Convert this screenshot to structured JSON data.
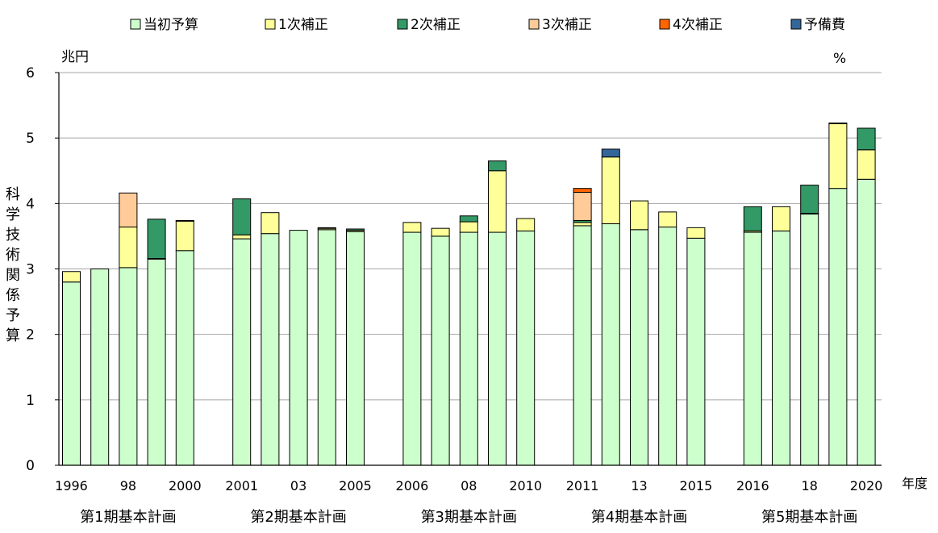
{
  "chart_data": {
    "type": "bar",
    "stacked": true,
    "title": "",
    "xlabel": "年度",
    "ylabel": "科学技術関係予算",
    "y_unit": "兆円",
    "right_unit": "%",
    "ylim": [
      0,
      6
    ],
    "yticks": [
      "0",
      "1",
      "2",
      "3",
      "4",
      "5",
      "6"
    ],
    "grid": true,
    "legend_position": "top",
    "series": [
      {
        "name": "当初予算",
        "color": "#ccffcc",
        "values": [
          2.8,
          3.0,
          3.02,
          3.15,
          3.28,
          null,
          3.46,
          3.54,
          3.59,
          3.6,
          3.57,
          null,
          3.56,
          3.5,
          3.56,
          3.56,
          3.58,
          null,
          3.66,
          3.69,
          3.6,
          3.64,
          3.47,
          null,
          3.56,
          3.58,
          3.84,
          4.23,
          4.37
        ]
      },
      {
        "name": "1次補正",
        "color": "#ffff99",
        "values": [
          0.16,
          0,
          0.62,
          0.01,
          0.45,
          null,
          0.06,
          0.32,
          0,
          0.02,
          0.02,
          null,
          0.15,
          0.12,
          0.16,
          0.94,
          0.19,
          null,
          0.05,
          1.02,
          0.44,
          0.23,
          0.16,
          null,
          0.02,
          0.37,
          0.01,
          0.99,
          0.45
        ]
      },
      {
        "name": "2次補正",
        "color": "#339966",
        "values": [
          0,
          0,
          0,
          0.6,
          0.01,
          null,
          0.55,
          0,
          0,
          0.01,
          0.02,
          null,
          0,
          0,
          0.09,
          0.15,
          0,
          null,
          0.03,
          0,
          0,
          0,
          0,
          null,
          0.37,
          0,
          0.43,
          0.01,
          0.33
        ]
      },
      {
        "name": "3次補正",
        "color": "#ffcc99",
        "values": [
          0,
          0,
          0.52,
          0,
          0,
          null,
          0,
          0,
          0,
          0,
          0,
          null,
          0,
          0,
          0,
          0,
          0,
          null,
          0.43,
          0,
          0,
          0,
          0,
          null,
          0,
          0,
          0,
          0,
          0
        ]
      },
      {
        "name": "4次補正",
        "color": "#ff6600",
        "values": [
          0,
          0,
          0,
          0,
          0,
          null,
          0,
          0,
          0,
          0,
          0,
          null,
          0,
          0,
          0,
          0,
          0,
          null,
          0.06,
          0,
          0,
          0,
          0,
          null,
          0,
          0,
          0,
          0,
          0
        ]
      },
      {
        "name": "予備費",
        "color": "#336699",
        "values": [
          0,
          0,
          0,
          0,
          0,
          null,
          0,
          0,
          0,
          0,
          0,
          null,
          0,
          0,
          0,
          0,
          0,
          null,
          0,
          0.12,
          0,
          0,
          0,
          null,
          0,
          0,
          0,
          0,
          0
        ]
      }
    ],
    "x_tick_labels": [
      "1996",
      "",
      "98",
      "",
      "2000",
      "",
      "2001",
      "",
      "03",
      "",
      "2005",
      "",
      "2006",
      "",
      "08",
      "",
      "2010",
      "",
      "2011",
      "",
      "13",
      "",
      "2015",
      "",
      "2016",
      "",
      "18",
      "",
      "2020"
    ],
    "groups": [
      "第1期基本計画",
      "第2期基本計画",
      "第3期基本計画",
      "第4期基本計画",
      "第5期基本計画"
    ]
  }
}
